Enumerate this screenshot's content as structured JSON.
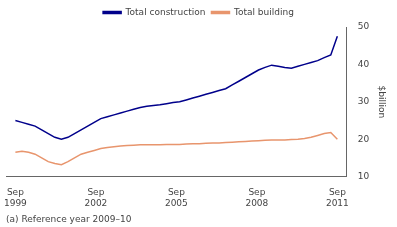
{
  "chart_data": {
    "type": "line",
    "ylabel": "$billion",
    "annotations": [
      "(a) Reference year 2009–10"
    ],
    "x": [
      1999.75,
      1999.994898,
      2000.239796,
      2000.484694,
      2000.729592,
      2000.97449,
      2001.219388,
      2001.464286,
      2001.709184,
      2001.954082,
      2002.19898,
      2002.443878,
      2002.688776,
      2002.933673,
      2003.178571,
      2003.423469,
      2003.668367,
      2003.913265,
      2004.158163,
      2004.403061,
      2004.647959,
      2004.892857,
      2005.137755,
      2005.382653,
      2005.627551,
      2005.872449,
      2006.117347,
      2006.362245,
      2006.607143,
      2006.852041,
      2007.096939,
      2007.341837,
      2007.586735,
      2007.831633,
      2008.076531,
      2008.321429,
      2008.566327,
      2008.811224,
      2009.056122,
      2009.30102,
      2009.545918,
      2009.790816,
      2010.035714,
      2010.280612,
      2010.52551,
      2010.770408,
      2011.015306,
      2011.260204,
      2011.505102,
      2011.75
    ],
    "series": [
      {
        "name": "Total construction",
        "color": "#00008B",
        "values": [
          25.0,
          24.5,
          24.0,
          23.5,
          22.5,
          21.5,
          20.5,
          20.0,
          20.5,
          21.5,
          22.5,
          23.5,
          24.5,
          25.5,
          26.0,
          26.5,
          27.0,
          27.5,
          28.0,
          28.5,
          28.8,
          29.0,
          29.2,
          29.5,
          29.8,
          30.0,
          30.5,
          31.0,
          31.5,
          32.0,
          32.5,
          33.0,
          33.5,
          34.5,
          35.5,
          36.5,
          37.5,
          38.5,
          39.2,
          39.8,
          39.5,
          39.2,
          39.0,
          39.5,
          40.0,
          40.5,
          41.0,
          41.8,
          42.5,
          47.5
        ]
      },
      {
        "name": "Total building",
        "color": "#E8956D",
        "values": [
          16.5,
          16.8,
          16.5,
          16.0,
          15.0,
          14.0,
          13.5,
          13.2,
          14.0,
          15.0,
          16.0,
          16.5,
          17.0,
          17.5,
          17.8,
          18.0,
          18.2,
          18.3,
          18.4,
          18.5,
          18.5,
          18.5,
          18.5,
          18.6,
          18.6,
          18.6,
          18.7,
          18.8,
          18.8,
          18.9,
          19.0,
          19.0,
          19.1,
          19.2,
          19.3,
          19.4,
          19.5,
          19.6,
          19.7,
          19.8,
          19.8,
          19.8,
          19.9,
          20.0,
          20.2,
          20.5,
          21.0,
          21.5,
          21.8,
          20.0
        ]
      }
    ],
    "xlim": [
      1999.4,
      2012.1
    ],
    "xticks": [
      {
        "value": 1999.75,
        "label": "Sep\n1999"
      },
      {
        "value": 2002.75,
        "label": "Sep\n2002"
      },
      {
        "value": 2005.75,
        "label": "Sep\n2005"
      },
      {
        "value": 2008.75,
        "label": "Sep\n2008"
      },
      {
        "value": 2011.75,
        "label": "Sep\n2011"
      }
    ],
    "ylim": [
      10,
      50
    ],
    "yticks": [
      10,
      20,
      30,
      40,
      50
    ],
    "grid": false,
    "legend": "top"
  }
}
